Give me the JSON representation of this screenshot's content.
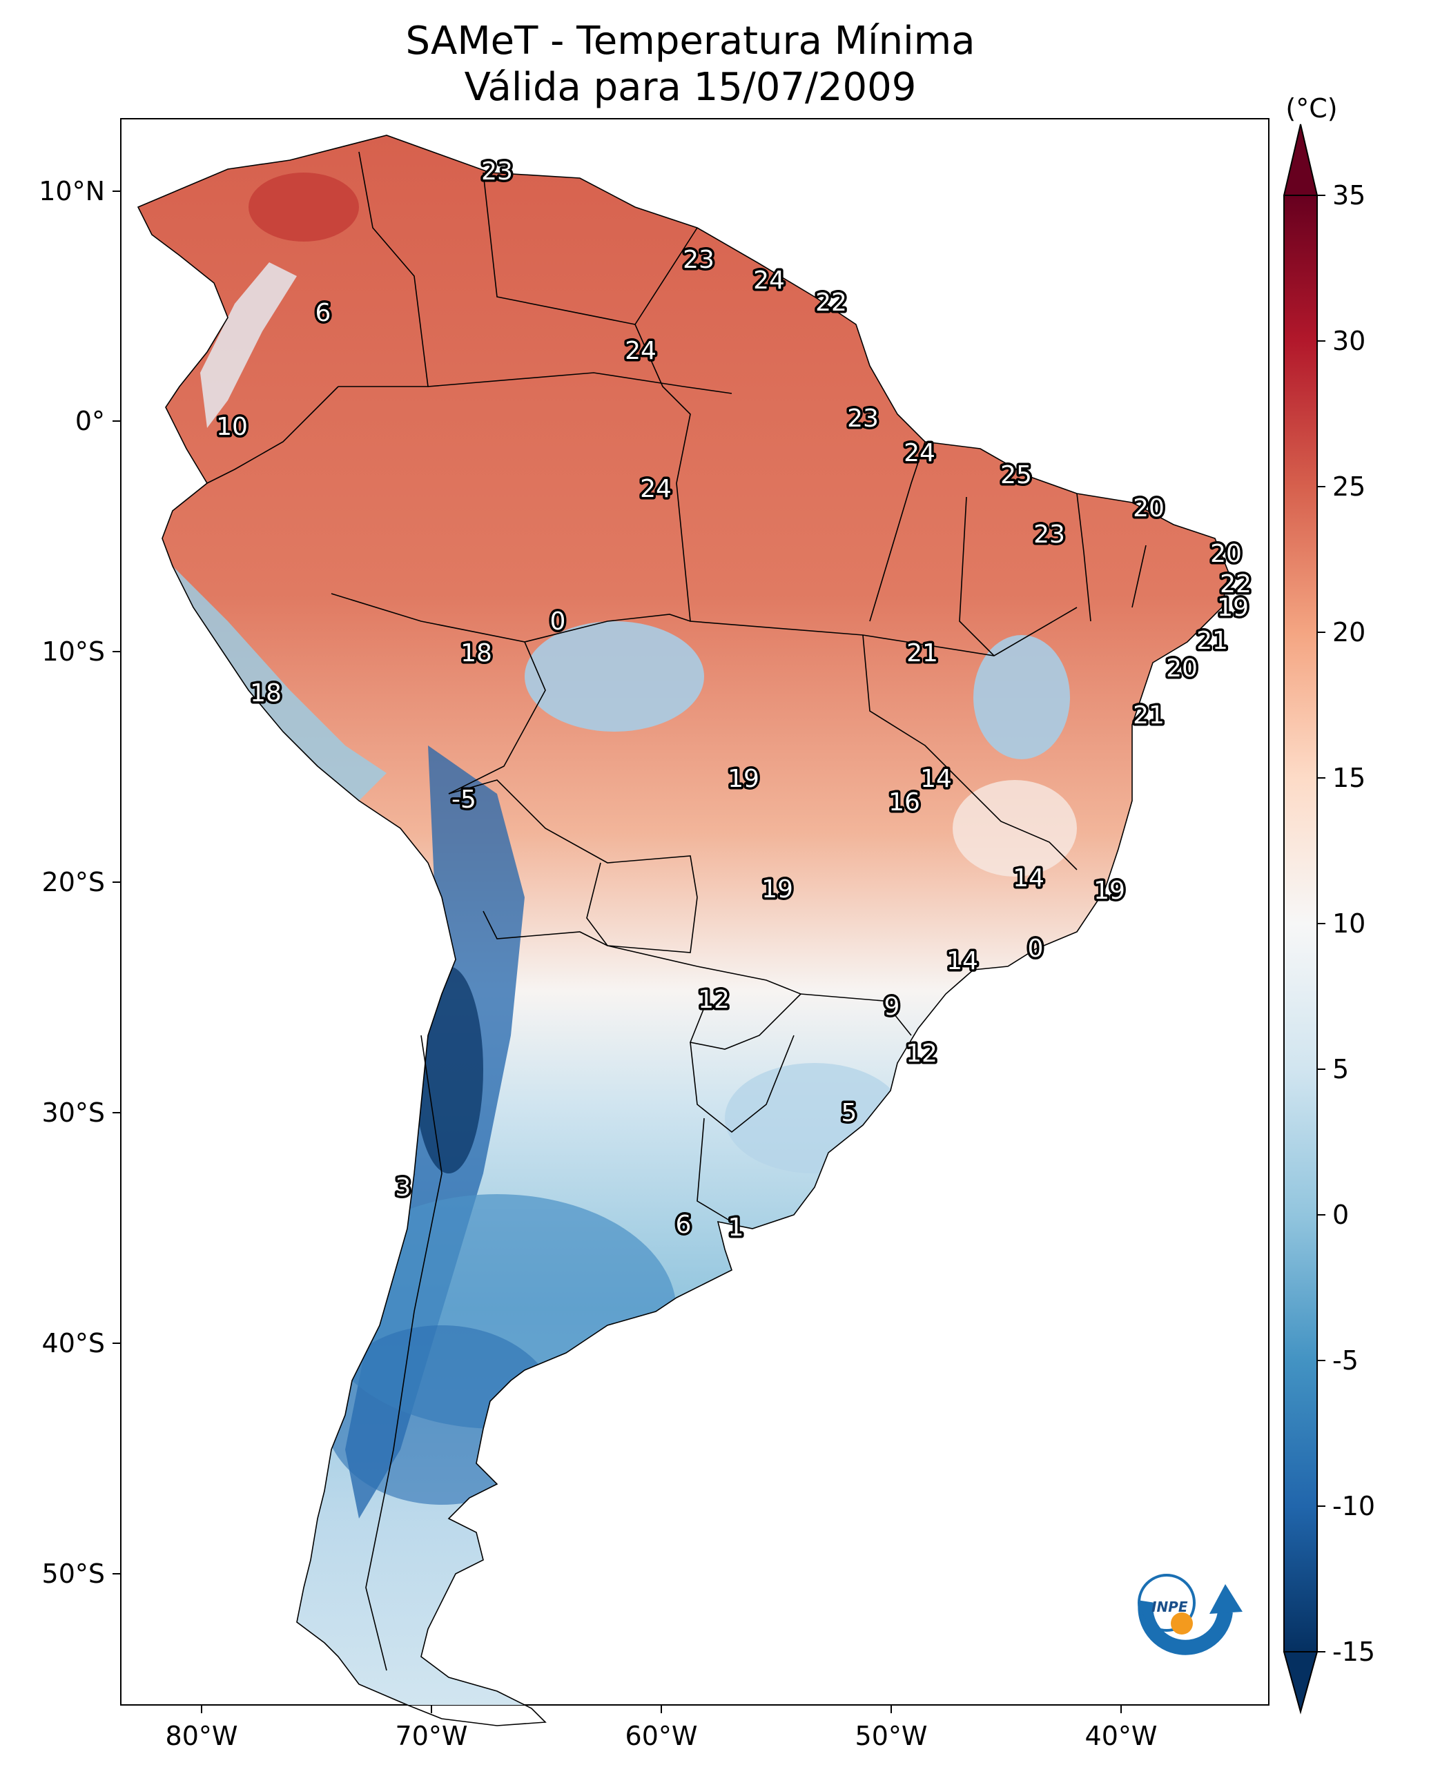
{
  "title_line1": "SAMeT - Temperatura Mínima",
  "title_line2": "Válida para 15/07/2009",
  "colorbar": {
    "unit_label": "(°C)",
    "min": -15,
    "max": 35,
    "ticks": [
      "35",
      "30",
      "25",
      "20",
      "15",
      "10",
      "5",
      "0",
      "-5",
      "-10",
      "-15"
    ],
    "colors": [
      "#053061",
      "#2166ac",
      "#4393c3",
      "#92c5de",
      "#d1e5f0",
      "#f7f7f7",
      "#fddbc7",
      "#f4a582",
      "#d6604d",
      "#b2182b",
      "#67001f"
    ]
  },
  "axes": {
    "lat_labels": [
      "10°N",
      "0°",
      "10°S",
      "20°S",
      "30°S",
      "40°S",
      "50°S"
    ],
    "lon_labels": [
      "80°W",
      "70°W",
      "60°W",
      "50°W",
      "40°W"
    ]
  },
  "logo": {
    "text": "INPE"
  },
  "map_labels": [
    "23",
    "23",
    "24",
    "22",
    "6",
    "24",
    "10",
    "23",
    "24",
    "25",
    "24",
    "20",
    "23",
    "20",
    "22",
    "19",
    "0",
    "21",
    "18",
    "21",
    "18",
    "20",
    "21",
    "19",
    "14",
    "16",
    "-5",
    "14",
    "19",
    "19",
    "0",
    "14",
    "12",
    "9",
    "12",
    "5",
    "3",
    "6",
    "1"
  ]
}
